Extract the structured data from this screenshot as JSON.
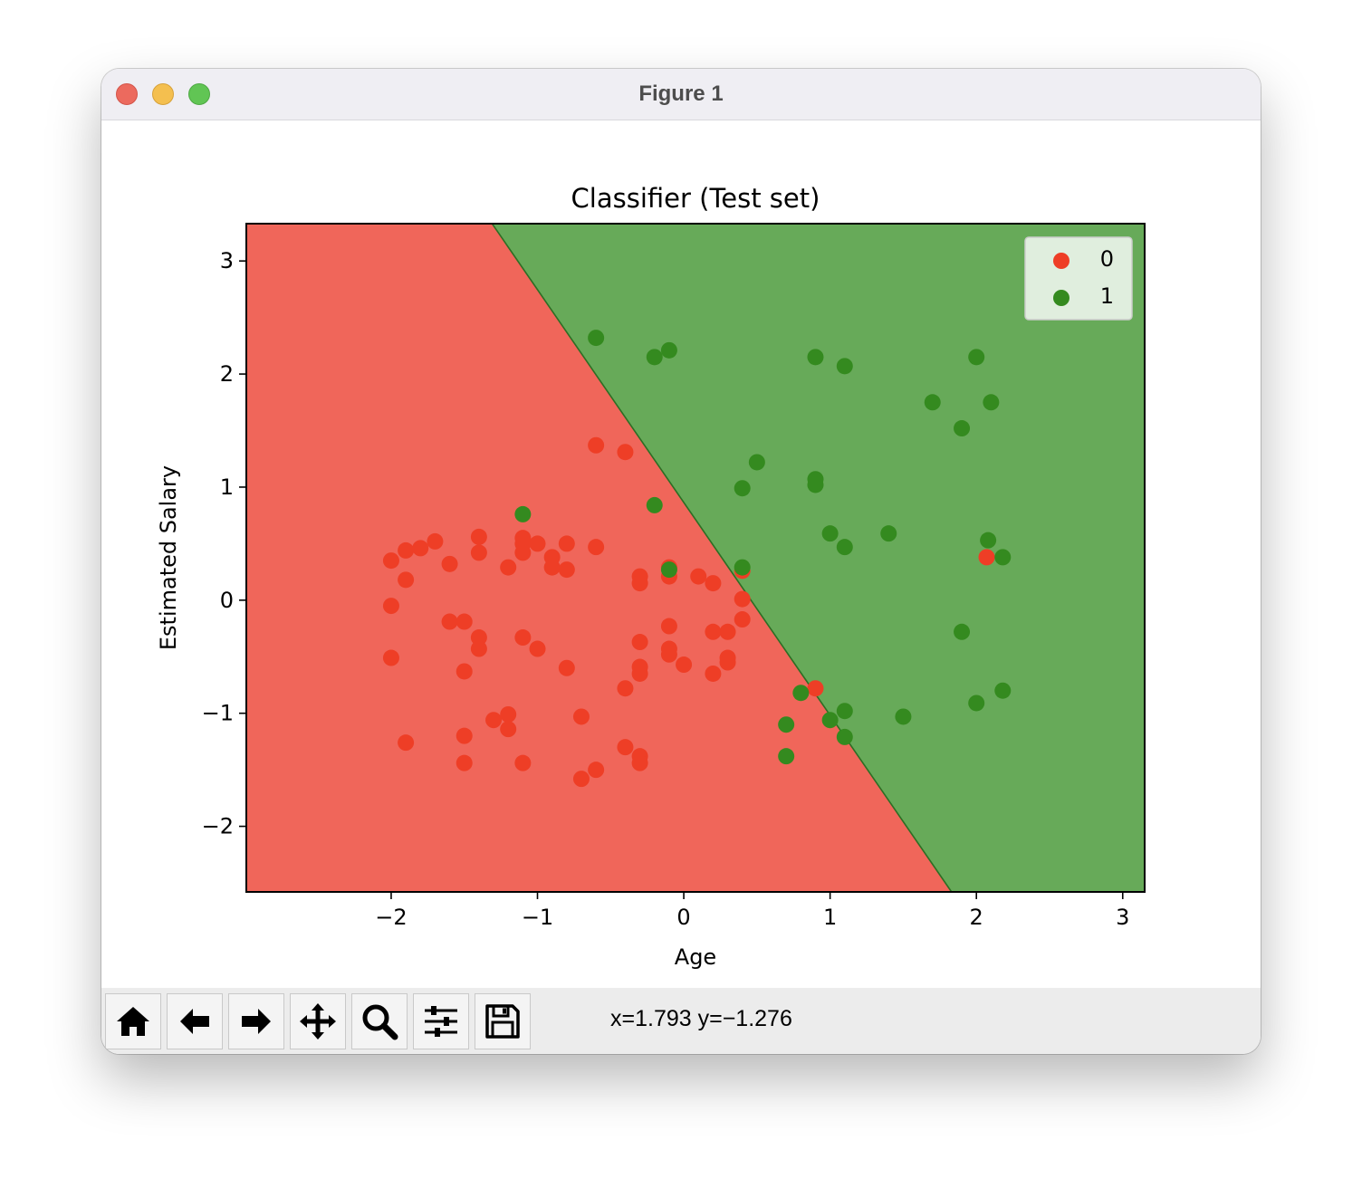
{
  "window": {
    "title": "Figure 1"
  },
  "toolbar": {
    "buttons": [
      {
        "name": "home-button",
        "icon": "home-icon"
      },
      {
        "name": "back-button",
        "icon": "arrow-left-icon"
      },
      {
        "name": "forward-button",
        "icon": "arrow-right-icon"
      },
      {
        "name": "pan-button",
        "icon": "move-icon"
      },
      {
        "name": "zoom-button",
        "icon": "magnifier-icon"
      },
      {
        "name": "configure-subplots-button",
        "icon": "sliders-icon"
      },
      {
        "name": "save-button",
        "icon": "floppy-disk-icon"
      }
    ],
    "coordinates": "x=1.793 y=−1.276"
  },
  "chart_data": {
    "type": "scatter",
    "title": "Classifier (Test set)",
    "xlabel": "Age",
    "ylabel": "Estimated Salary",
    "xlim": [
      -2.99,
      3.15
    ],
    "ylim": [
      -2.58,
      3.33
    ],
    "xticks": [
      -2,
      -1,
      0,
      1,
      2,
      3
    ],
    "yticks": [
      -2,
      -1,
      0,
      1,
      2,
      3
    ],
    "xtick_labels": [
      "−2",
      "−1",
      "0",
      "1",
      "2",
      "3"
    ],
    "ytick_labels": [
      "−2",
      "−1",
      "0",
      "1",
      "2",
      "3"
    ],
    "legend_position": "top-right",
    "regions": [
      {
        "label": "0",
        "color": "#f0665a"
      },
      {
        "label": "1",
        "color": "#67aa59"
      }
    ],
    "decision_boundary": [
      [
        -1.31,
        3.33
      ],
      [
        1.83,
        -2.58
      ]
    ],
    "series": [
      {
        "name": "0",
        "color": "#ee3e26",
        "points": [
          [
            -2.0,
            0.35
          ],
          [
            -1.9,
            0.44
          ],
          [
            -1.8,
            0.46
          ],
          [
            -1.7,
            0.52
          ],
          [
            -1.9,
            0.18
          ],
          [
            -2.0,
            -0.05
          ],
          [
            -1.6,
            0.32
          ],
          [
            -1.4,
            0.56
          ],
          [
            -1.4,
            0.42
          ],
          [
            -1.1,
            0.55
          ],
          [
            -1.1,
            0.5
          ],
          [
            -1.1,
            0.42
          ],
          [
            -1.0,
            0.5
          ],
          [
            -0.9,
            0.38
          ],
          [
            -0.9,
            0.29
          ],
          [
            -0.8,
            0.5
          ],
          [
            -0.8,
            0.27
          ],
          [
            -1.2,
            0.29
          ],
          [
            -0.6,
            0.47
          ],
          [
            -0.6,
            1.37
          ],
          [
            -0.4,
            1.31
          ],
          [
            -0.3,
            0.21
          ],
          [
            -0.3,
            0.15
          ],
          [
            -0.1,
            0.29
          ],
          [
            -0.1,
            0.21
          ],
          [
            0.1,
            0.21
          ],
          [
            0.2,
            0.15
          ],
          [
            0.4,
            0.26
          ],
          [
            0.4,
            0.01
          ],
          [
            0.4,
            -0.17
          ],
          [
            0.2,
            -0.28
          ],
          [
            0.3,
            -0.28
          ],
          [
            -0.1,
            -0.23
          ],
          [
            -0.3,
            -0.37
          ],
          [
            -0.1,
            -0.43
          ],
          [
            -0.1,
            -0.48
          ],
          [
            0.0,
            -0.57
          ],
          [
            0.3,
            -0.51
          ],
          [
            0.3,
            -0.55
          ],
          [
            0.2,
            -0.65
          ],
          [
            -0.3,
            -0.59
          ],
          [
            -0.3,
            -0.65
          ],
          [
            -0.4,
            -0.78
          ],
          [
            -1.6,
            -0.19
          ],
          [
            -1.5,
            -0.19
          ],
          [
            -1.4,
            -0.33
          ],
          [
            -1.4,
            -0.43
          ],
          [
            -2.0,
            -0.51
          ],
          [
            -1.5,
            -0.63
          ],
          [
            -1.1,
            -0.33
          ],
          [
            -1.0,
            -0.43
          ],
          [
            -0.8,
            -0.6
          ],
          [
            -1.2,
            -1.01
          ],
          [
            -1.3,
            -1.06
          ],
          [
            -1.2,
            -1.14
          ],
          [
            -0.7,
            -1.03
          ],
          [
            -1.5,
            -1.2
          ],
          [
            -1.9,
            -1.26
          ],
          [
            -1.5,
            -1.44
          ],
          [
            -1.1,
            -1.44
          ],
          [
            -0.4,
            -1.3
          ],
          [
            -0.3,
            -1.38
          ],
          [
            -0.3,
            -1.44
          ],
          [
            -0.6,
            -1.5
          ],
          [
            -0.7,
            -1.58
          ],
          [
            0.9,
            -0.78
          ],
          [
            2.07,
            0.38
          ]
        ]
      },
      {
        "name": "1",
        "color": "#348a1f",
        "points": [
          [
            -0.6,
            2.32
          ],
          [
            -0.2,
            2.15
          ],
          [
            -0.1,
            2.21
          ],
          [
            0.9,
            2.15
          ],
          [
            1.1,
            2.07
          ],
          [
            2.0,
            2.15
          ],
          [
            1.7,
            1.75
          ],
          [
            2.1,
            1.75
          ],
          [
            1.9,
            1.52
          ],
          [
            0.5,
            1.22
          ],
          [
            0.4,
            0.99
          ],
          [
            0.9,
            1.07
          ],
          [
            0.9,
            1.02
          ],
          [
            -0.2,
            0.84
          ],
          [
            -1.1,
            0.76
          ],
          [
            1.0,
            0.59
          ],
          [
            1.1,
            0.47
          ],
          [
            1.4,
            0.59
          ],
          [
            2.08,
            0.53
          ],
          [
            2.18,
            0.38
          ],
          [
            0.4,
            0.29
          ],
          [
            -0.1,
            0.27
          ],
          [
            1.9,
            -0.28
          ],
          [
            2.0,
            -0.91
          ],
          [
            2.18,
            -0.8
          ],
          [
            0.8,
            -0.82
          ],
          [
            0.7,
            -1.1
          ],
          [
            1.0,
            -1.06
          ],
          [
            1.1,
            -0.98
          ],
          [
            1.5,
            -1.03
          ],
          [
            1.1,
            -1.21
          ],
          [
            0.7,
            -1.38
          ]
        ]
      }
    ]
  }
}
